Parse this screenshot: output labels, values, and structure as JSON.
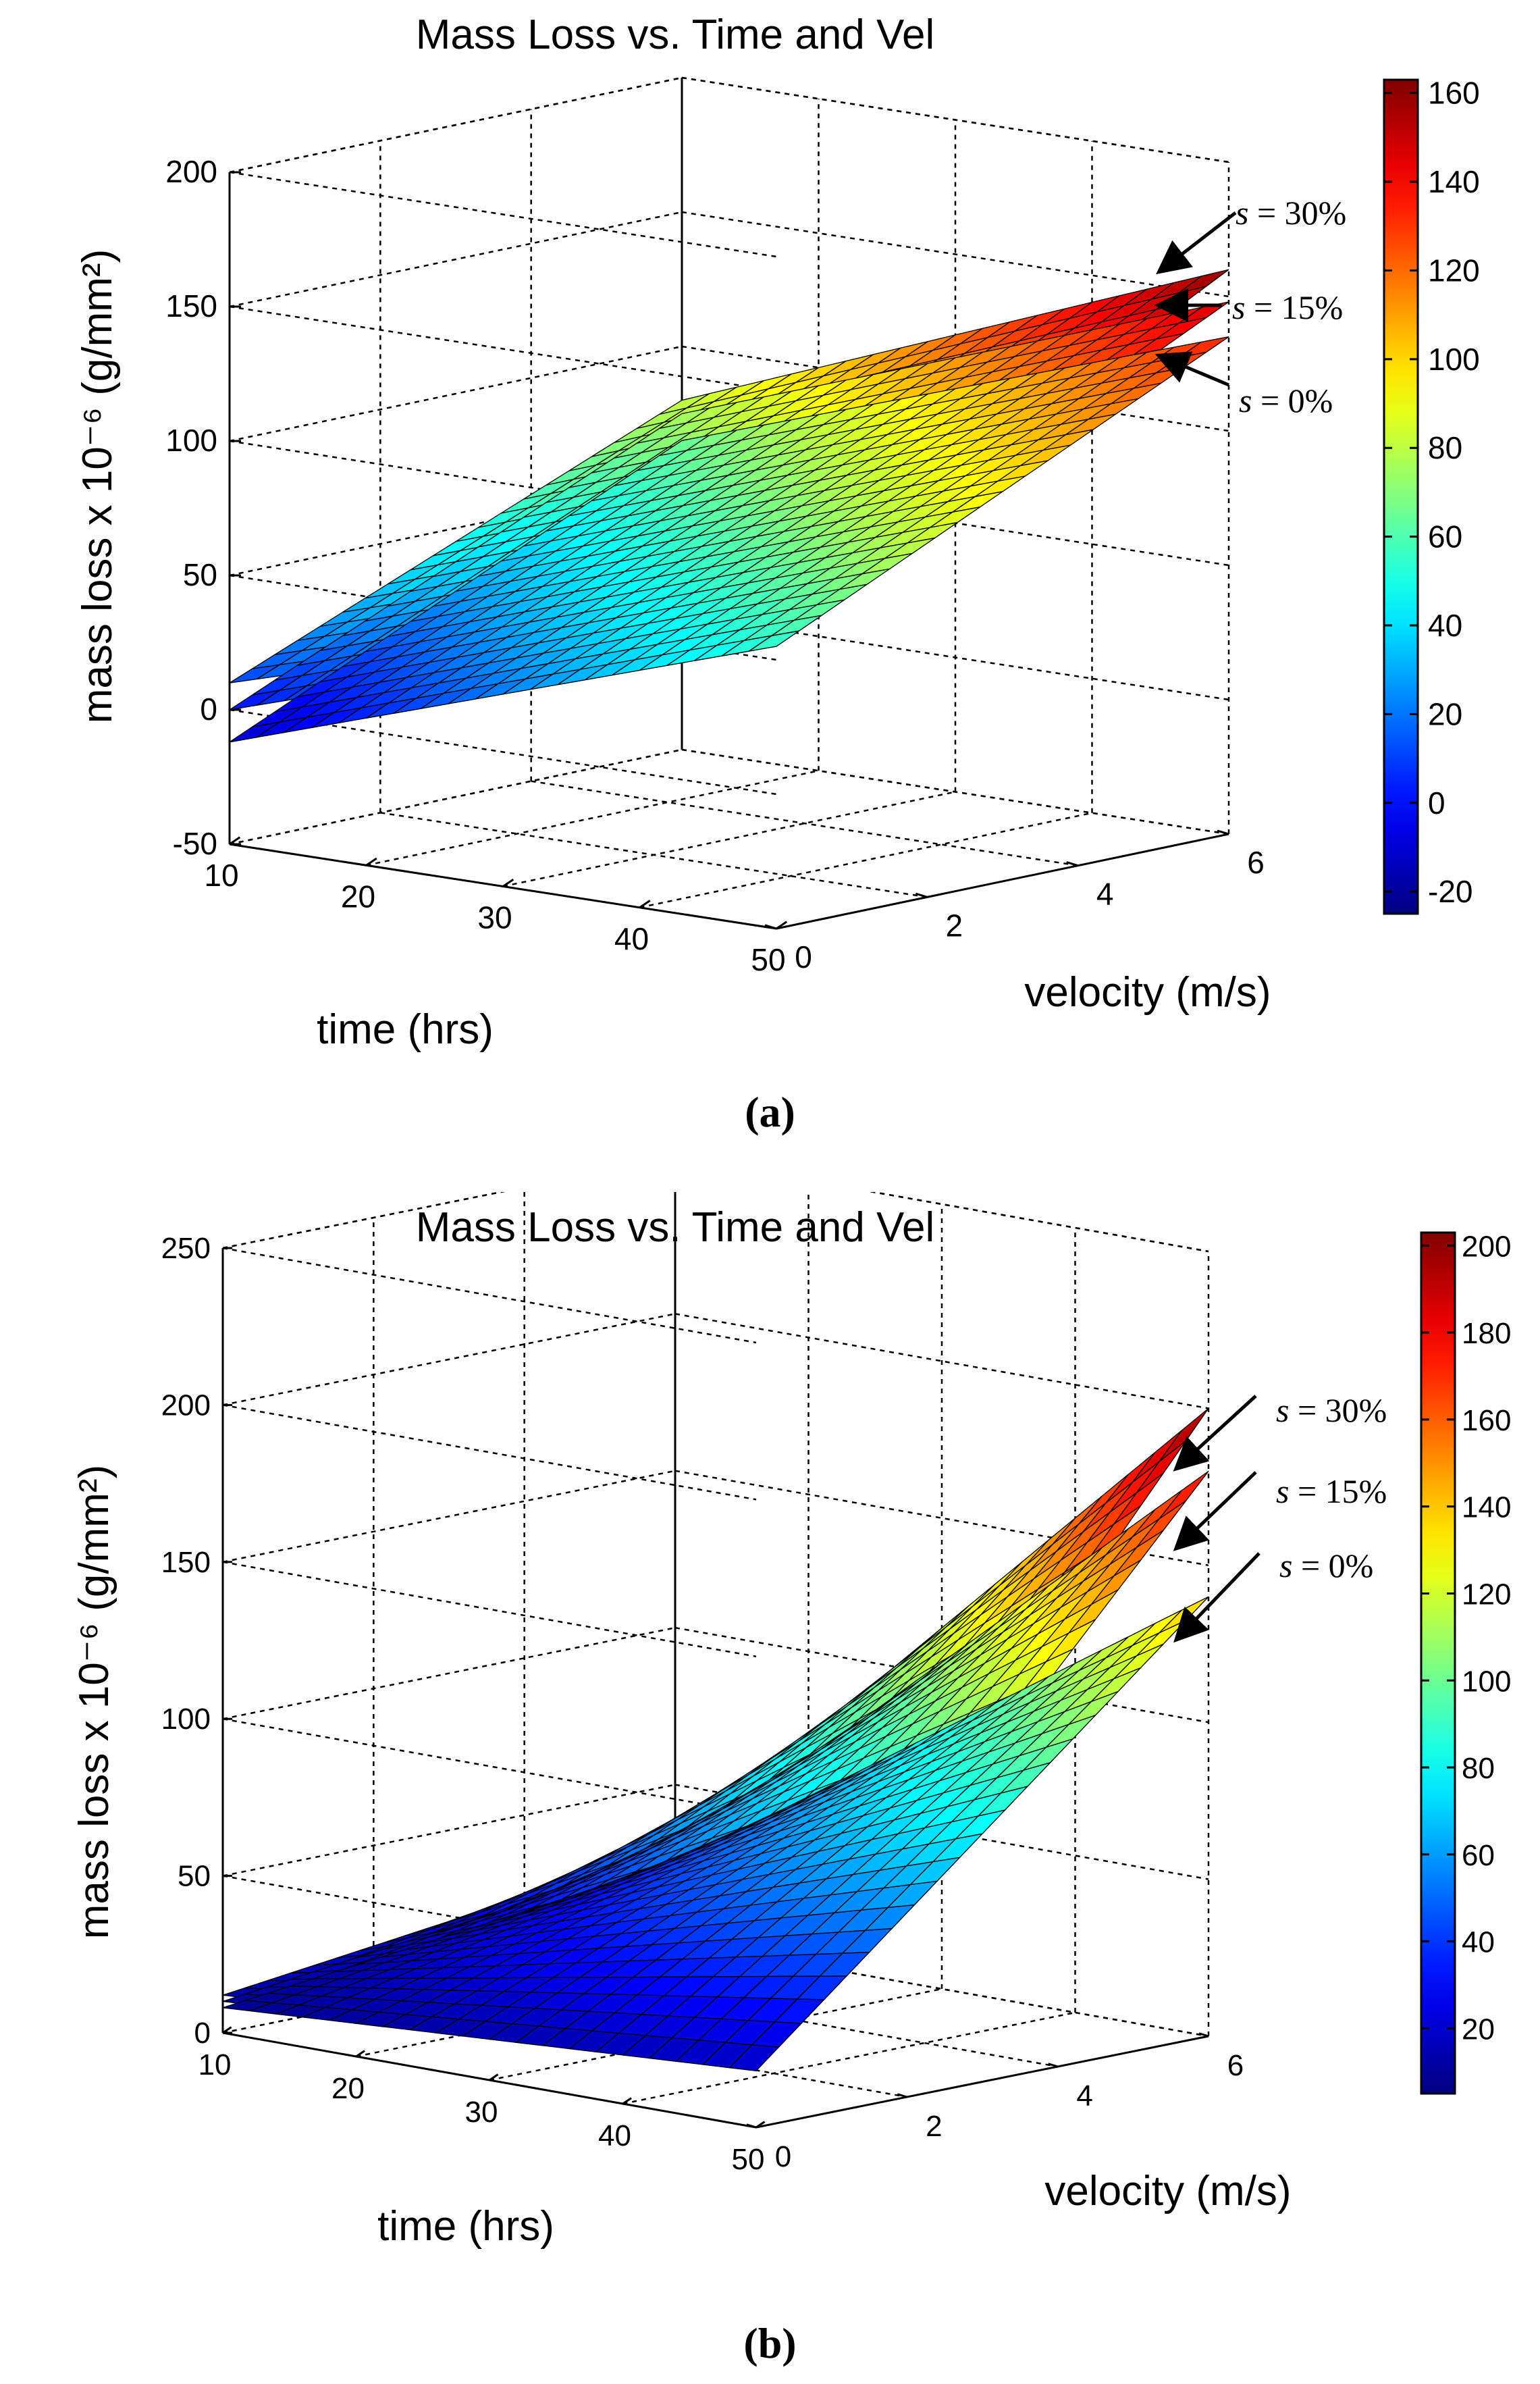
{
  "chart_data": [
    {
      "type": "surface3d",
      "panel": "a",
      "title": "Mass Loss vs. Time and Vel",
      "xlabel": "time (hrs)",
      "ylabel": "velocity (m/s)",
      "zlabel": "mass loss x 10⁻⁶ (g/mm²)",
      "xlim": [
        10,
        50
      ],
      "ylim": [
        0,
        6
      ],
      "zlim": [
        -50,
        200
      ],
      "xticks": [
        "10",
        "20",
        "30",
        "40",
        "50"
      ],
      "yticks": [
        "0",
        "2",
        "4",
        "6"
      ],
      "zticks": [
        "-50",
        "0",
        "50",
        "100",
        "150",
        "200"
      ],
      "colorbar": {
        "range": [
          -25,
          163
        ],
        "ticks": [
          "160",
          "140",
          "120",
          "100",
          "80",
          "60",
          "40",
          "20",
          "0",
          "-20"
        ]
      },
      "series": [
        {
          "name": "s = 30%",
          "corners": {
            "t10_v0": 10,
            "t50_v0": 70,
            "t10_v6": 80,
            "t50_v6": 160
          }
        },
        {
          "name": "s = 15%",
          "corners": {
            "t10_v0": 0,
            "t50_v0": 65,
            "t10_v6": 75,
            "t50_v6": 148
          }
        },
        {
          "name": "s = 0%",
          "corners": {
            "t10_v0": -12,
            "t50_v0": 55,
            "t10_v6": 65,
            "t50_v6": 135
          }
        }
      ],
      "caption": "(a)"
    },
    {
      "type": "surface3d",
      "panel": "b",
      "title": "Mass Loss vs. Time and Vel",
      "xlabel": "time (hrs)",
      "ylabel": "velocity (m/s)",
      "zlabel": "mass loss x 10⁻⁶ (g/mm²)",
      "xlim": [
        10,
        50
      ],
      "ylim": [
        0,
        6
      ],
      "zlim": [
        0,
        250
      ],
      "xticks": [
        "10",
        "20",
        "30",
        "40",
        "50"
      ],
      "yticks": [
        "0",
        "2",
        "4",
        "6"
      ],
      "zticks": [
        "0",
        "50",
        "100",
        "150",
        "200",
        "250"
      ],
      "colorbar": {
        "range": [
          5,
          203
        ],
        "ticks": [
          "200",
          "180",
          "160",
          "140",
          "120",
          "100",
          "80",
          "60",
          "40",
          "20"
        ]
      },
      "series": [
        {
          "name": "s = 30%",
          "corners": {
            "t10_v0": 12,
            "t50_v0": 22,
            "t10_v6": 30,
            "t50_v6": 200
          }
        },
        {
          "name": "s = 15%",
          "corners": {
            "t10_v0": 10,
            "t50_v0": 20,
            "t10_v6": 28,
            "t50_v6": 180
          }
        },
        {
          "name": "s = 0%",
          "corners": {
            "t10_v0": 8,
            "t50_v0": 18,
            "t10_v6": 25,
            "t50_v6": 140
          }
        }
      ],
      "caption": "(b)"
    }
  ]
}
